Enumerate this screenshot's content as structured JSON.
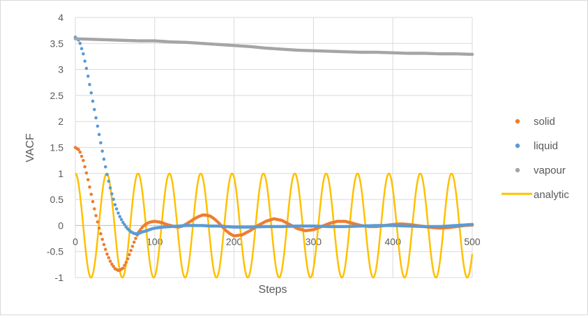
{
  "chart_data": {
    "type": "scatter",
    "title": "",
    "xlabel": "Steps",
    "ylabel": "VACF",
    "xlim": [
      0,
      500
    ],
    "ylim": [
      -1,
      4
    ],
    "x_ticks": [
      "0",
      "100",
      "200",
      "300",
      "400",
      "500"
    ],
    "y_ticks": [
      "-1",
      "-0.5",
      "0",
      "0.5",
      "1",
      "1.5",
      "2",
      "2.5",
      "3",
      "3.5",
      "4"
    ],
    "grid": true,
    "legend_position": "right",
    "series": [
      {
        "name": "solid",
        "kind": "markers",
        "color": "#ED7D31",
        "x": [
          0,
          5,
          10,
          15,
          20,
          25,
          30,
          35,
          40,
          45,
          50,
          55,
          60,
          65,
          70,
          75,
          80,
          85,
          90,
          95,
          100,
          105,
          110,
          115,
          120,
          125,
          130,
          135,
          140,
          145,
          150,
          155,
          160,
          165,
          170,
          175,
          180,
          185,
          190,
          195,
          200,
          210,
          220,
          230,
          240,
          250,
          260,
          270,
          280,
          290,
          300,
          310,
          320,
          330,
          340,
          350,
          360,
          370,
          380,
          390,
          400,
          410,
          420,
          430,
          440,
          450,
          460,
          470,
          480,
          490,
          500
        ],
        "values": [
          1.5,
          1.45,
          1.25,
          0.95,
          0.6,
          0.25,
          -0.05,
          -0.32,
          -0.55,
          -0.72,
          -0.83,
          -0.87,
          -0.82,
          -0.68,
          -0.48,
          -0.28,
          -0.12,
          -0.02,
          0.04,
          0.07,
          0.08,
          0.07,
          0.05,
          0.02,
          0.0,
          -0.02,
          -0.03,
          -0.01,
          0.03,
          0.08,
          0.13,
          0.17,
          0.2,
          0.2,
          0.18,
          0.13,
          0.06,
          -0.02,
          -0.1,
          -0.16,
          -0.2,
          -0.18,
          -0.1,
          0.0,
          0.08,
          0.13,
          0.1,
          0.02,
          -0.06,
          -0.1,
          -0.08,
          -0.02,
          0.04,
          0.08,
          0.08,
          0.04,
          0.0,
          -0.02,
          -0.02,
          0.0,
          0.02,
          0.03,
          0.02,
          0.0,
          -0.02,
          -0.04,
          -0.05,
          -0.04,
          -0.02,
          0.0,
          0.01
        ]
      },
      {
        "name": "liquid",
        "kind": "markers",
        "color": "#5B9BD5",
        "x": [
          0,
          5,
          10,
          15,
          20,
          25,
          30,
          35,
          40,
          45,
          50,
          55,
          60,
          65,
          70,
          75,
          80,
          85,
          90,
          95,
          100,
          110,
          120,
          130,
          140,
          150,
          160,
          170,
          180,
          190,
          200,
          220,
          240,
          260,
          280,
          300,
          320,
          340,
          360,
          380,
          400,
          420,
          440,
          460,
          480,
          500
        ],
        "values": [
          3.62,
          3.55,
          3.3,
          2.95,
          2.55,
          2.15,
          1.75,
          1.35,
          0.98,
          0.66,
          0.4,
          0.2,
          0.06,
          -0.05,
          -0.12,
          -0.16,
          -0.15,
          -0.12,
          -0.1,
          -0.07,
          -0.05,
          -0.03,
          -0.02,
          -0.01,
          0.0,
          0.0,
          0.0,
          -0.01,
          -0.01,
          -0.02,
          -0.03,
          -0.03,
          -0.02,
          -0.02,
          -0.01,
          -0.01,
          -0.02,
          -0.02,
          -0.01,
          0.0,
          0.0,
          -0.01,
          -0.02,
          -0.02,
          0.0,
          0.02
        ]
      },
      {
        "name": "vapour",
        "kind": "markers",
        "color": "#A5A5A5",
        "x": [
          0,
          20,
          40,
          60,
          80,
          100,
          120,
          140,
          160,
          180,
          200,
          220,
          240,
          260,
          280,
          300,
          320,
          340,
          360,
          380,
          400,
          420,
          440,
          460,
          480,
          500
        ],
        "values": [
          3.59,
          3.58,
          3.57,
          3.56,
          3.55,
          3.55,
          3.53,
          3.52,
          3.5,
          3.48,
          3.46,
          3.44,
          3.41,
          3.39,
          3.37,
          3.36,
          3.35,
          3.34,
          3.33,
          3.33,
          3.32,
          3.31,
          3.31,
          3.3,
          3.3,
          3.29
        ]
      },
      {
        "name": "analytic",
        "kind": "line",
        "color": "#FFC000",
        "amplitude": 1,
        "period": 39.5
      }
    ]
  }
}
